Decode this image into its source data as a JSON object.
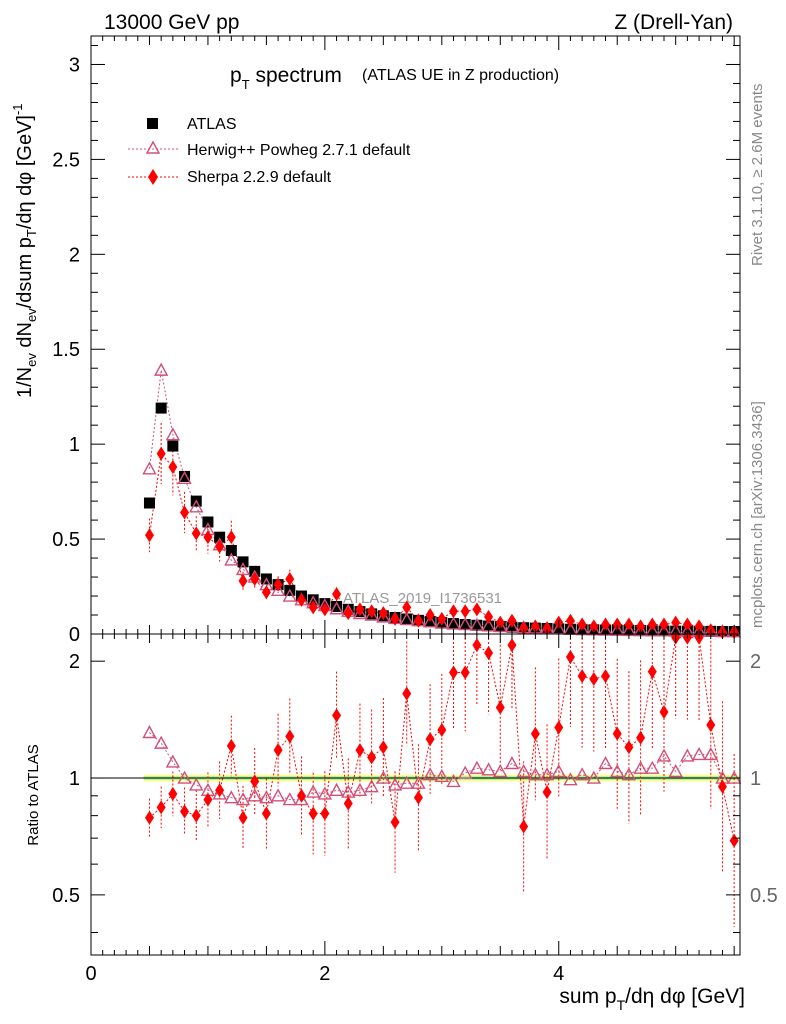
{
  "header": {
    "left": "13000 GeV pp",
    "right": "Z (Drell-Yan)"
  },
  "title": {
    "main_p": "p",
    "main_sub": "T",
    "main_rest": " spectrum",
    "detail": "(ATLAS UE in Z production)"
  },
  "side": {
    "rivet": "Rivet 3.1.10, ≥ 2.6M events",
    "source": "mcplots.cern.ch [arXiv:1306.3436]"
  },
  "watermark": "ATLAS_2019_I1736531",
  "legend": [
    {
      "key": "data",
      "label": "ATLAS"
    },
    {
      "key": "herwig",
      "label": "Herwig++ Powheg 2.7.1 default"
    },
    {
      "key": "sherpa",
      "label": "Sherpa 2.2.9 default"
    }
  ],
  "axes": {
    "ylabel_main": "1/N_ev dN_ev/dsum p_T/dη dφ [GeV]^-1",
    "ylabel_ratio": "Ratio to ATLAS",
    "xlabel": "sum p_T/dη dφ [GeV]",
    "main_yticks": [
      "0",
      "0.5",
      "1",
      "1.5",
      "2",
      "2.5",
      "3"
    ],
    "ratio_yticks": [
      "0.5",
      "1",
      "2"
    ],
    "xticks": [
      "0",
      "2",
      "4"
    ]
  },
  "colors": {
    "data": "#000000",
    "herwig": "#d0507a",
    "sherpa": "#ff0000",
    "band_outer": "#ffff88",
    "band_inner": "#99ee99"
  },
  "chart_data": {
    "type": "scatter",
    "xlim": [
      0,
      5.55
    ],
    "ylim_main": [
      0,
      3.15
    ],
    "ylim_ratio": [
      0.35,
      2.35
    ],
    "ratio_log_scale": true,
    "x": [
      0.5,
      0.6,
      0.7,
      0.8,
      0.9,
      1.0,
      1.1,
      1.2,
      1.3,
      1.4,
      1.5,
      1.6,
      1.7,
      1.8,
      1.9,
      2.0,
      2.1,
      2.2,
      2.3,
      2.4,
      2.5,
      2.6,
      2.7,
      2.8,
      2.9,
      3.0,
      3.1,
      3.2,
      3.3,
      3.4,
      3.5,
      3.6,
      3.7,
      3.8,
      3.9,
      4.0,
      4.1,
      4.2,
      4.3,
      4.4,
      4.5,
      4.6,
      4.7,
      4.8,
      4.9,
      5.0,
      5.1,
      5.2,
      5.3,
      5.4,
      5.5
    ],
    "series": [
      {
        "name": "ATLAS",
        "values": [
          0.69,
          1.19,
          0.99,
          0.83,
          0.7,
          0.59,
          0.51,
          0.44,
          0.38,
          0.33,
          0.29,
          0.26,
          0.23,
          0.2,
          0.18,
          0.16,
          0.145,
          0.13,
          0.118,
          0.106,
          0.096,
          0.087,
          0.079,
          0.072,
          0.066,
          0.06,
          0.055,
          0.05,
          0.046,
          0.042,
          0.039,
          0.036,
          0.033,
          0.031,
          0.029,
          0.027,
          0.025,
          0.023,
          0.022,
          0.021,
          0.02,
          0.019,
          0.018,
          0.017,
          0.016,
          0.015,
          0.015,
          0.014,
          0.014,
          0.013,
          0.013
        ]
      },
      {
        "name": "Herwig++ Powheg 2.7.1 default",
        "values": [
          0.87,
          1.39,
          1.05,
          0.82,
          0.67,
          0.55,
          0.47,
          0.39,
          0.34,
          0.3,
          0.26,
          0.23,
          0.2,
          0.18,
          0.165,
          0.15,
          0.133,
          0.12,
          0.108,
          0.1,
          0.09,
          0.082,
          0.076,
          0.07,
          0.064,
          0.058,
          0.053,
          0.05,
          0.047,
          0.043,
          0.04,
          0.039,
          0.034,
          0.032,
          0.029,
          0.028,
          0.025,
          0.024,
          0.022,
          0.021,
          0.021,
          0.019,
          0.018,
          0.017,
          0.017,
          0.016,
          0.016,
          0.016,
          0.016,
          0.013,
          0.012
        ]
      },
      {
        "name": "Sherpa 2.2.9 default",
        "values": [
          0.52,
          0.95,
          0.88,
          0.64,
          0.53,
          0.51,
          0.46,
          0.51,
          0.28,
          0.29,
          0.22,
          0.26,
          0.29,
          0.18,
          0.14,
          0.13,
          0.21,
          0.11,
          0.13,
          0.12,
          0.11,
          0.08,
          0.14,
          0.07,
          0.1,
          0.08,
          0.12,
          0.12,
          0.13,
          0.09,
          0.06,
          0.07,
          0.03,
          0.04,
          0.03,
          0.06,
          0.07,
          0.05,
          0.04,
          0.05,
          0.05,
          0.05,
          0.04,
          0.05,
          0.05,
          0.06,
          0.05,
          0.04,
          0.02,
          0.01,
          0.01
        ]
      }
    ],
    "ratio": {
      "herwig": [
        1.31,
        1.23,
        1.1,
        1.0,
        0.96,
        0.93,
        0.91,
        0.89,
        0.88,
        0.9,
        0.89,
        0.9,
        0.88,
        0.88,
        0.92,
        0.91,
        0.93,
        0.92,
        0.93,
        0.95,
        1.0,
        0.96,
        0.97,
        0.97,
        1.02,
        1.01,
        0.98,
        1.03,
        1.06,
        1.05,
        1.04,
        1.09,
        1.04,
        1.02,
        1.02,
        1.04,
        0.99,
        1.02,
        1.0,
        1.09,
        1.04,
        1.02,
        1.06,
        1.06,
        1.14,
        1.04,
        1.14,
        1.15,
        1.15,
        1.0,
        1.0
      ],
      "sherpa": [
        0.79,
        0.84,
        0.91,
        0.82,
        0.8,
        0.88,
        0.93,
        1.21,
        0.79,
        0.98,
        0.81,
        1.18,
        1.28,
        0.9,
        0.81,
        0.81,
        1.45,
        0.86,
        1.18,
        1.13,
        1.2,
        0.77,
        1.65,
        0.89,
        1.26,
        1.33,
        1.87,
        1.87,
        2.2,
        2.1,
        1.52,
        2.2,
        0.75,
        1.3,
        0.92,
        1.35,
        2.05,
        1.83,
        1.8,
        1.83,
        1.3,
        1.2,
        1.27,
        1.88,
        1.48,
        2.3,
        2.3,
        2.3,
        1.37,
        0.95,
        0.69
      ]
    }
  }
}
